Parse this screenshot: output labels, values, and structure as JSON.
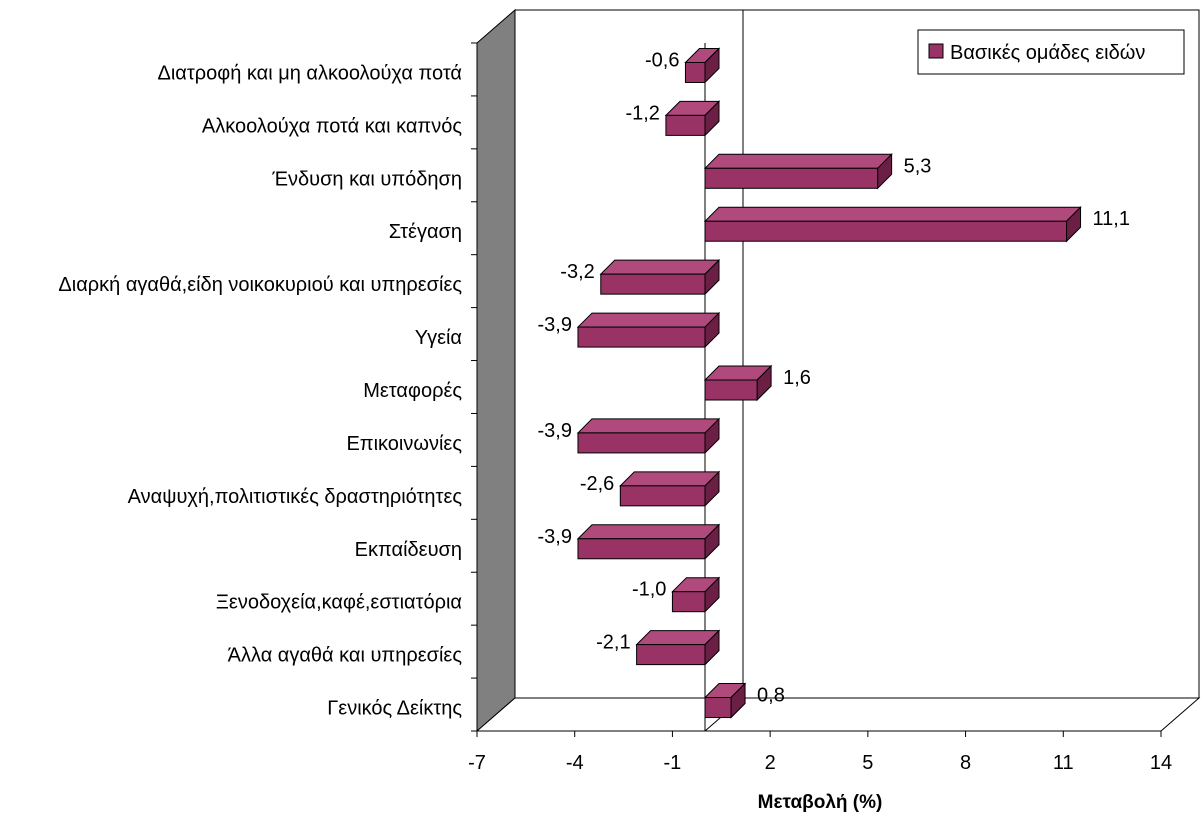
{
  "chart_data": {
    "type": "bar",
    "orientation": "horizontal",
    "three_d": true,
    "categories": [
      "Διατροφή και μη αλκοολούχα ποτά",
      "Αλκοολούχα ποτά και καπνός",
      "Ένδυση και υπόδηση",
      "Στέγαση",
      "Διαρκή αγαθά,είδη νοικοκυριού και υπηρεσίες",
      "Υγεία",
      "Μεταφορές",
      "Επικοινωνίες",
      "Αναψυχή,πολιτιστικές δραστηριότητες",
      "Εκπαίδευση",
      "Ξενοδοχεία,καφέ,εστιατόρια",
      "Άλλα αγαθά και υπηρεσίες",
      "Γενικός Δείκτης"
    ],
    "series": [
      {
        "name": "Βασικές ομάδες ειδών",
        "values": [
          -0.6,
          -1.2,
          5.3,
          11.1,
          -3.2,
          -3.9,
          1.6,
          -3.9,
          -2.6,
          -3.9,
          -1.0,
          -2.1,
          0.8
        ],
        "labels": [
          "-0,6",
          "-1,2",
          "5,3",
          "11,1",
          "-3,2",
          "-3,9",
          "1,6",
          "-3,9",
          "-2,6",
          "-3,9",
          "-1,0",
          "-2,1",
          "0,8"
        ]
      }
    ],
    "xticks": [
      -7,
      -4,
      -1,
      2,
      5,
      8,
      11,
      14
    ],
    "xlim": [
      -7,
      14
    ],
    "xlabel": "Μεταβολή (%)",
    "ylabel": "",
    "title": "",
    "legend_position": "top-right",
    "grid": false,
    "colors": {
      "bar_front": "#993366",
      "bar_top": "#b04a7d",
      "bar_side": "#6b1f45",
      "back_wall": "#ffffff",
      "side_wall": "#808080",
      "floor": "#ffffff",
      "outline": "#000000"
    }
  }
}
